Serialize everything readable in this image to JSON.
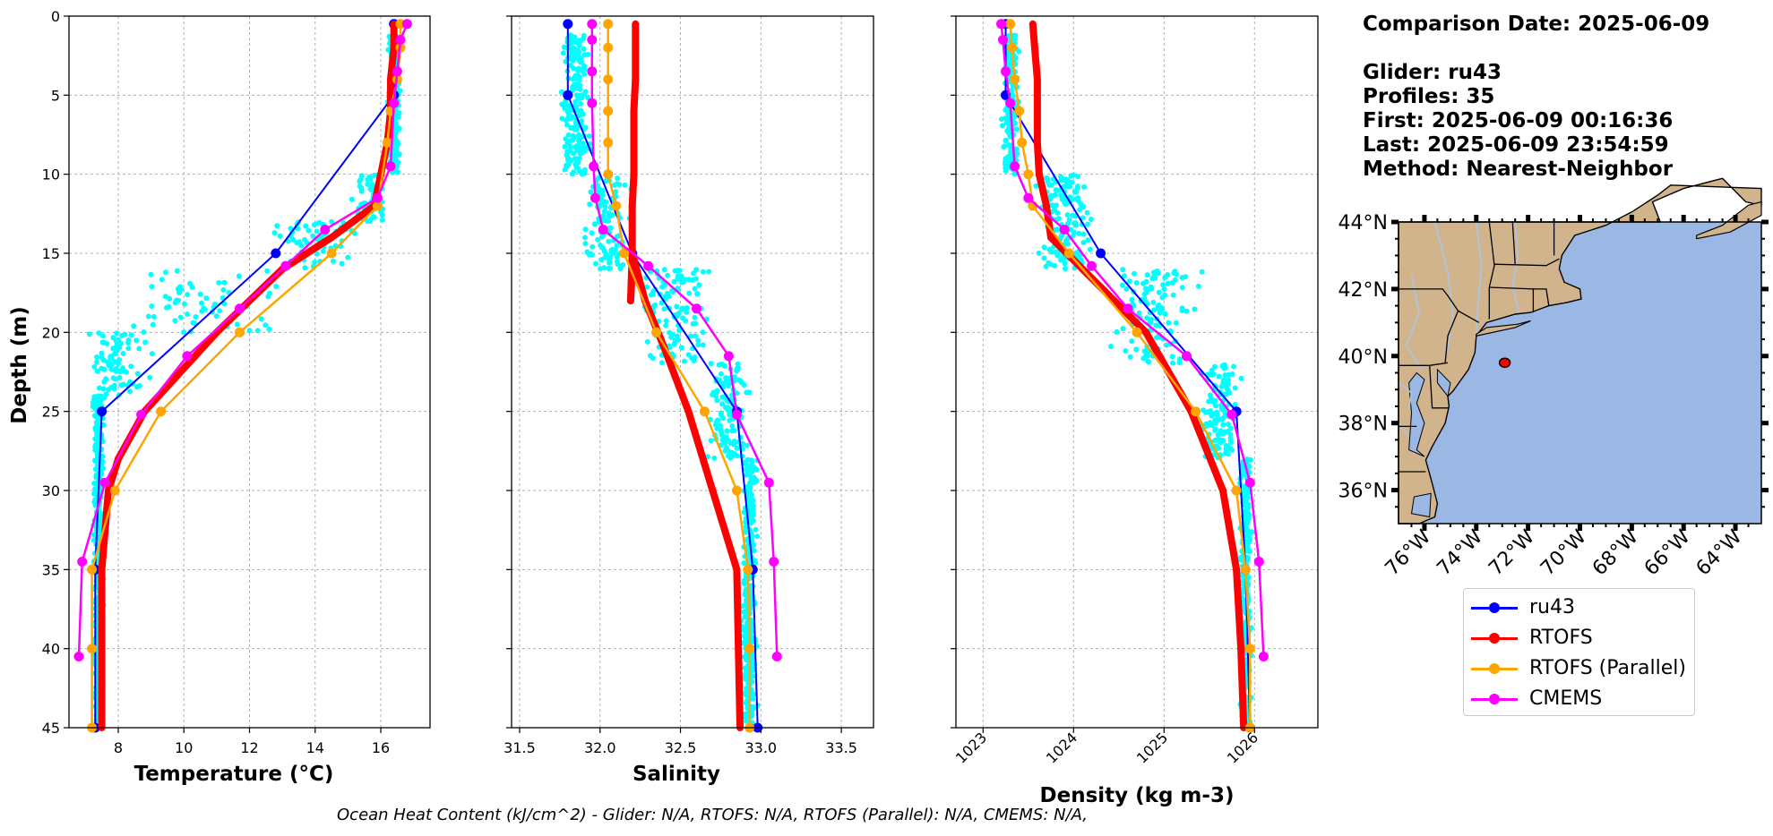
{
  "chart_data": [
    {
      "type": "line",
      "xlabel": "Temperature (°C)",
      "ylabel": "Depth (m)",
      "xlim": [
        6.5,
        17.5
      ],
      "ylim": [
        45,
        0
      ],
      "xticks": [
        8,
        10,
        12,
        14,
        16
      ],
      "yticks": [
        0,
        5,
        10,
        15,
        20,
        25,
        30,
        35,
        40,
        45
      ],
      "grid": true,
      "series": [
        {
          "name": "ru43",
          "color": "#0000ff",
          "x": [
            16.4,
            16.4,
            12.8,
            7.5,
            7.3,
            7.3
          ],
          "y": [
            0.5,
            5,
            15,
            25,
            35,
            45
          ]
        },
        {
          "name": "RTOFS",
          "color": "#ff0000",
          "x": [
            16.4,
            16.4,
            16.3,
            16.3,
            16.2,
            15.8,
            14.5,
            13.0,
            11.0,
            8.8,
            8.0,
            7.7,
            7.5,
            7.5,
            7.5
          ],
          "y": [
            0.5,
            2,
            4,
            6,
            8,
            12,
            14,
            16,
            20,
            25,
            28,
            30,
            35,
            40,
            45
          ]
        },
        {
          "name": "RTOFS (Parallel)",
          "color": "#ffa500",
          "x": [
            16.6,
            16.6,
            16.5,
            16.3,
            16.2,
            15.9,
            14.5,
            11.7,
            9.3,
            7.9,
            7.2,
            7.2,
            7.2
          ],
          "y": [
            0.5,
            2,
            4,
            6,
            8,
            12,
            15,
            20,
            25,
            30,
            35,
            40,
            45
          ]
        },
        {
          "name": "CMEMS",
          "color": "#ff00ff",
          "x": [
            16.8,
            16.6,
            16.5,
            16.4,
            16.3,
            15.9,
            14.3,
            13.1,
            11.7,
            10.1,
            8.7,
            7.6,
            6.9,
            6.8
          ],
          "y": [
            0.5,
            1.5,
            3.5,
            5.5,
            9.5,
            11.5,
            13.5,
            15.8,
            18.5,
            21.5,
            25.2,
            29.5,
            34.5,
            40.5
          ]
        }
      ]
    },
    {
      "type": "line",
      "xlabel": "Salinity",
      "xlim": [
        31.45,
        33.7
      ],
      "ylim": [
        45,
        0
      ],
      "xticks": [
        31.5,
        32.0,
        32.5,
        33.0,
        33.5
      ],
      "grid": true,
      "series": [
        {
          "name": "ru43",
          "x": [
            31.8,
            31.8,
            32.2,
            32.85,
            32.95,
            32.98
          ],
          "y": [
            0.5,
            5,
            15,
            25,
            35,
            45
          ]
        },
        {
          "name": "RTOFS",
          "x": [
            32.22,
            32.22,
            32.22,
            32.21,
            32.21,
            32.21,
            32.2,
            32.2,
            32.2,
            32.19,
            32.2,
            32.28,
            32.4,
            32.55,
            32.7,
            32.85,
            32.86,
            32.87
          ],
          "y": [
            0.5,
            2,
            4,
            6,
            8,
            10,
            12,
            14,
            16,
            18,
            15,
            18,
            21,
            25,
            30,
            35,
            40,
            45
          ]
        },
        {
          "name": "RTOFS (Parallel)",
          "x": [
            32.05,
            32.05,
            32.05,
            32.05,
            32.05,
            32.05,
            32.1,
            32.15,
            32.35,
            32.65,
            32.85,
            32.92,
            32.93,
            32.93
          ],
          "y": [
            0.5,
            2,
            4,
            6,
            8,
            10,
            12,
            15,
            20,
            25,
            30,
            35,
            40,
            45
          ]
        },
        {
          "name": "CMEMS",
          "x": [
            31.95,
            31.95,
            31.95,
            31.95,
            31.96,
            31.97,
            32.02,
            32.3,
            32.6,
            32.8,
            32.85,
            33.05,
            33.08,
            33.1
          ],
          "y": [
            0.5,
            1.5,
            3.5,
            5.5,
            9.5,
            11.5,
            13.5,
            15.8,
            18.5,
            21.5,
            25.2,
            29.5,
            34.5,
            40.5
          ]
        }
      ]
    },
    {
      "type": "line",
      "xlabel": "Density (kg m-3)",
      "xlim": [
        1022.7,
        1026.7
      ],
      "ylim": [
        45,
        0
      ],
      "xticks": [
        1023,
        1024,
        1025,
        1026
      ],
      "grid": true,
      "series": [
        {
          "name": "ru43",
          "x": [
            1023.25,
            1023.25,
            1024.3,
            1025.8,
            1025.9,
            1025.95
          ],
          "y": [
            0.5,
            5,
            15,
            25,
            35,
            45
          ]
        },
        {
          "name": "RTOFS",
          "x": [
            1023.55,
            1023.57,
            1023.6,
            1023.6,
            1023.6,
            1023.62,
            1023.7,
            1023.75,
            1024.1,
            1024.8,
            1025.3,
            1025.65,
            1025.8,
            1025.85,
            1025.88
          ],
          "y": [
            0.5,
            2,
            4,
            6,
            8,
            10,
            12,
            14,
            16,
            20,
            25,
            30,
            35,
            40,
            45
          ]
        },
        {
          "name": "RTOFS (Parallel)",
          "x": [
            1023.3,
            1023.32,
            1023.35,
            1023.4,
            1023.43,
            1023.5,
            1023.55,
            1023.95,
            1024.7,
            1025.35,
            1025.8,
            1025.9,
            1025.95,
            1025.95
          ],
          "y": [
            0.5,
            2,
            4,
            6,
            8,
            10,
            12,
            15,
            20,
            25,
            30,
            35,
            40,
            45
          ]
        },
        {
          "name": "CMEMS",
          "x": [
            1023.2,
            1023.22,
            1023.25,
            1023.3,
            1023.35,
            1023.5,
            1023.9,
            1024.2,
            1024.6,
            1025.25,
            1025.75,
            1025.95,
            1026.05,
            1026.1
          ],
          "y": [
            0.5,
            1.5,
            3.5,
            5.5,
            9.5,
            11.5,
            13.5,
            15.8,
            18.5,
            21.5,
            25.2,
            29.5,
            34.5,
            40.5
          ]
        }
      ]
    }
  ],
  "info": {
    "date_line": "Comparison Date: 2025-06-09",
    "glider_line": "Glider: ru43",
    "profiles_line": "Profiles: 35",
    "first_line": "First: 2025-06-09 00:16:36",
    "last_line": "Last: 2025-06-09 23:54:59",
    "method_line": "Method: Nearest-Neighbor"
  },
  "map": {
    "lat_labels": [
      "44°N",
      "42°N",
      "40°N",
      "38°N",
      "36°N"
    ],
    "lat_values": [
      44,
      42,
      40,
      38,
      36
    ],
    "lon_labels": [
      "76°W",
      "74°W",
      "72°W",
      "70°W",
      "68°W",
      "66°W",
      "64°W"
    ],
    "lon_values": [
      -76,
      -74,
      -72,
      -70,
      -68,
      -66,
      -64
    ],
    "extent": {
      "lon": [
        -77,
        -63
      ],
      "lat": [
        35,
        44
      ]
    },
    "glider_position": {
      "lon": -72.9,
      "lat": 39.8
    },
    "land_color": "#d2b48c",
    "ocean_color": "#9bb8e4"
  },
  "legend": {
    "items": [
      {
        "label": "ru43",
        "color": "#0000ff"
      },
      {
        "label": "RTOFS",
        "color": "#ff0000"
      },
      {
        "label": "RTOFS (Parallel)",
        "color": "#ffa500"
      },
      {
        "label": "CMEMS",
        "color": "#ff00ff"
      }
    ]
  },
  "colors": {
    "glider_points": "#00ffff",
    "grid": "#b0b0b0"
  },
  "footer": "Ocean Heat Content (kJ/cm^2) - Glider: N/A,  RTOFS: N/A,  RTOFS (Parallel): N/A,  CMEMS: N/A,"
}
